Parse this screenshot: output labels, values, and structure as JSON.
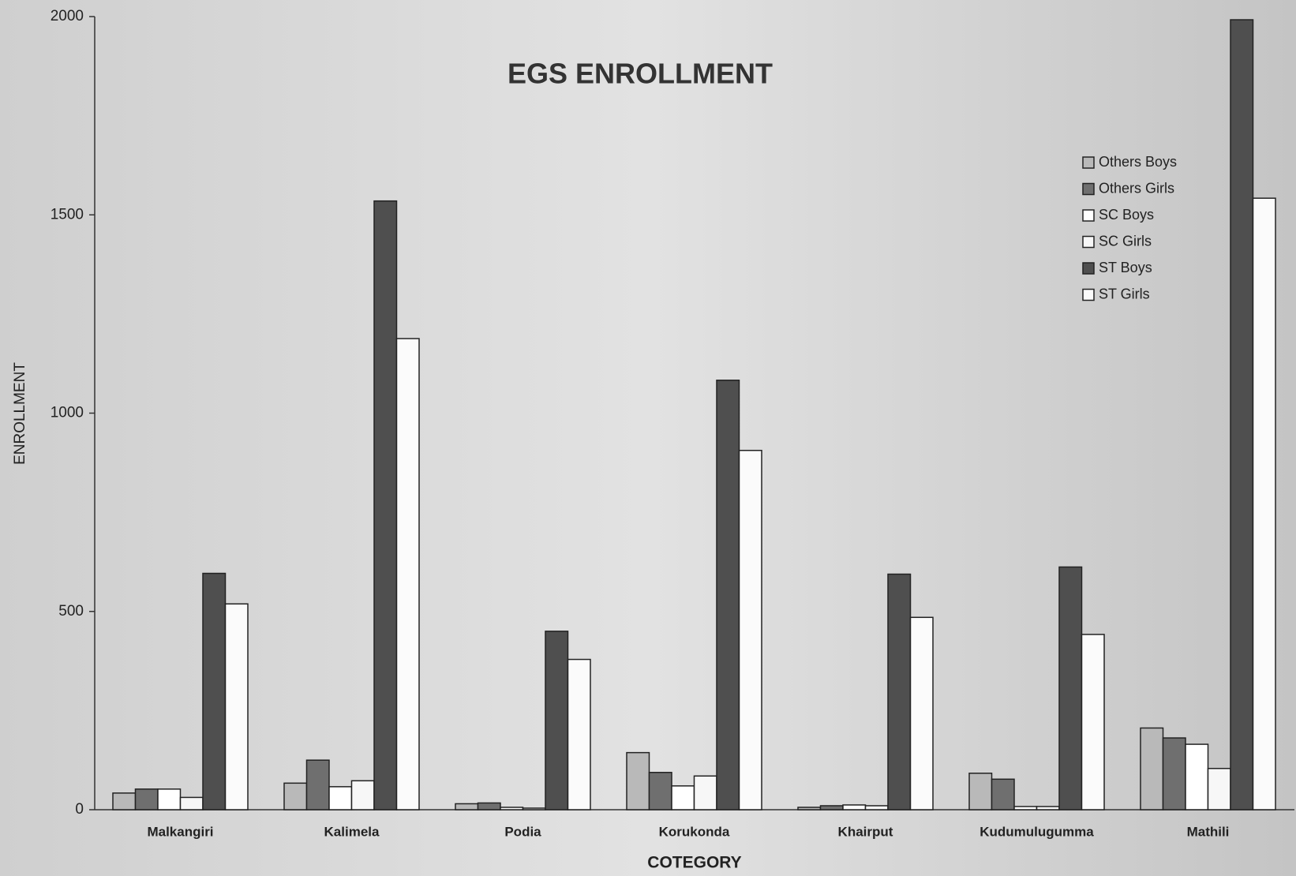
{
  "chart_data": {
    "type": "bar",
    "title": "EGS ENROLLMENT",
    "x_label": "COTEGORY",
    "y_label": "ENROLLMENT",
    "categories": [
      "Malkangiri",
      "Kalimela",
      "Podia",
      "Korukonda",
      "Khairput",
      "Kudumulugumma",
      "Mathili"
    ],
    "series": [
      {
        "name": "Others Boys",
        "color": "#b9b9b9",
        "values": [
          42,
          67,
          15,
          144,
          6,
          92,
          206
        ]
      },
      {
        "name": "Others Girls",
        "color": "#6f6f6f",
        "values": [
          52,
          125,
          17,
          94,
          10,
          77,
          181
        ]
      },
      {
        "name": "SC Boys",
        "color": "#ffffff",
        "values": [
          52,
          58,
          6,
          60,
          12,
          8,
          165
        ]
      },
      {
        "name": "SC Girls",
        "color": "#f7f7f7",
        "values": [
          31,
          73,
          4,
          85,
          10,
          8,
          104
        ]
      },
      {
        "name": "ST Boys",
        "color": "#4f4f4f",
        "values": [
          596,
          1535,
          450,
          1083,
          594,
          612,
          1992
        ]
      },
      {
        "name": "ST Girls",
        "color": "#fbfbfb",
        "values": [
          519,
          1188,
          379,
          906,
          485,
          442,
          1542
        ]
      }
    ],
    "ylim": [
      0,
      2000
    ],
    "yticks": [
      0,
      500,
      1000,
      1500,
      2000
    ],
    "grid": false,
    "legend": "upper right"
  }
}
